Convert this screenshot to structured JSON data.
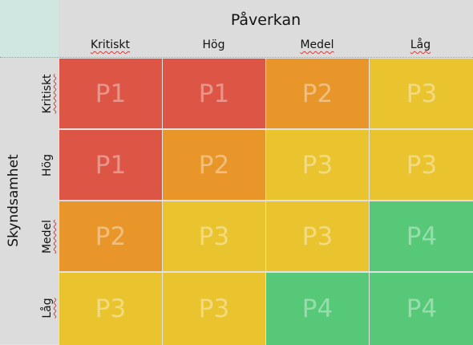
{
  "x_axis_title": "Påverkan",
  "y_axis_title": "Skyndsamhet",
  "columns": [
    "Kritiskt",
    "Hög",
    "Medel",
    "Låg"
  ],
  "rows": [
    "Kritiskt",
    "Hög",
    "Medel",
    "Låg"
  ],
  "colors": {
    "P1": "#dc5545",
    "P2": "#e8962a",
    "P3": "#eac42f",
    "P4": "#56c878"
  },
  "matrix": [
    [
      "P1",
      "P1",
      "P2",
      "P3"
    ],
    [
      "P1",
      "P2",
      "P3",
      "P3"
    ],
    [
      "P2",
      "P3",
      "P3",
      "P4"
    ],
    [
      "P3",
      "P3",
      "P4",
      "P4"
    ]
  ]
}
